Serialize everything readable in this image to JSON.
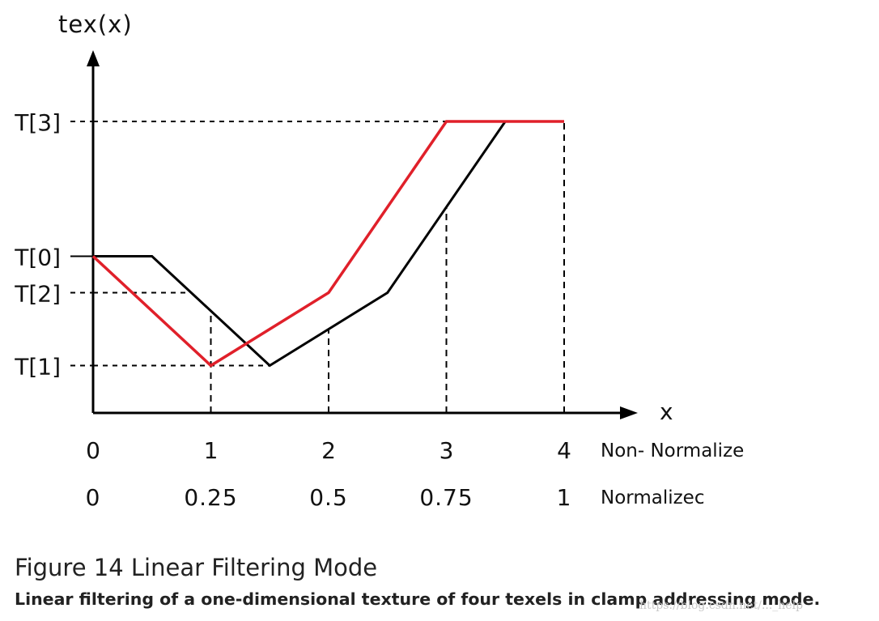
{
  "chart_data": {
    "type": "line",
    "y_axis_label": "tex(x)",
    "x_axis_label": "x",
    "y_levels": [
      {
        "label": "T[3]",
        "value": 4
      },
      {
        "label": "T[0]",
        "value": 2.15
      },
      {
        "label": "T[2]",
        "value": 1.65
      },
      {
        "label": "T[1]",
        "value": 0.65
      }
    ],
    "x_ticks": [
      0,
      1,
      2,
      3,
      4
    ],
    "x_tick_labels_non_normalized": [
      "0",
      "1",
      "2",
      "3",
      "4"
    ],
    "x_tick_labels_normalized": [
      "0",
      "0.25",
      "0.5",
      "0.75",
      "1"
    ],
    "row_label_non_normalized": "Non- Normalize",
    "row_label_normalized": "Normalizec",
    "xlim": [
      0,
      4.6
    ],
    "ylim": [
      0,
      5.1
    ],
    "series": [
      {
        "color": "#000000",
        "points": [
          [
            0,
            2.15
          ],
          [
            0.5,
            2.15
          ],
          [
            1.5,
            0.65
          ],
          [
            2.5,
            1.65
          ],
          [
            3.5,
            4
          ],
          [
            4,
            4
          ]
        ]
      },
      {
        "color": "#e0202a",
        "points": [
          [
            0,
            2.15
          ],
          [
            1,
            0.65
          ],
          [
            2,
            1.65
          ],
          [
            3,
            4
          ],
          [
            4,
            4
          ]
        ]
      }
    ]
  },
  "caption": {
    "title": "Figure 14   Linear Filtering Mode",
    "description": "Linear filtering of a one-dimensional texture of four texels in clamp addressing mode."
  },
  "watermark": "https://blog.csdn.net/..._help"
}
